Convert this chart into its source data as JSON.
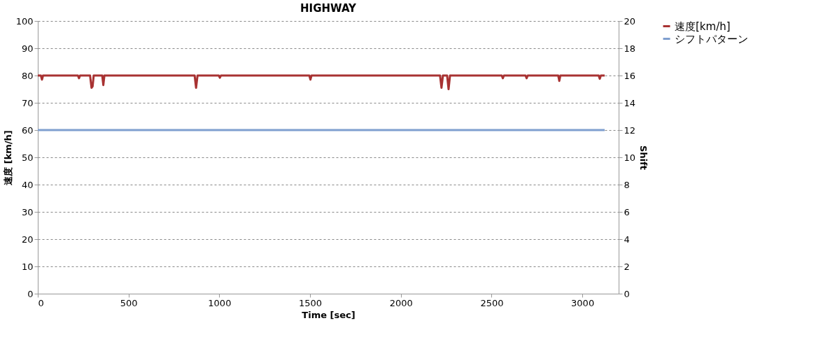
{
  "chart_data": {
    "type": "line",
    "title": "HIGHWAY",
    "xlabel": "Time [sec]",
    "ylabel": "速度 [km/h]",
    "y2label": "Shift",
    "xlim": [
      0,
      3200
    ],
    "xticks": [
      0,
      500,
      1000,
      1500,
      2000,
      2500,
      3000
    ],
    "ylim": [
      0,
      100
    ],
    "yticks": [
      0,
      10,
      20,
      30,
      40,
      50,
      60,
      70,
      80,
      90,
      100
    ],
    "y2lim": [
      0,
      20
    ],
    "y2ticks": [
      0,
      2,
      4,
      6,
      8,
      10,
      12,
      14,
      16,
      18,
      20
    ],
    "grid": "y",
    "legend": "right",
    "line_style": "solid",
    "marker": "none",
    "series": [
      {
        "name": "速度[km/h]",
        "color": "#a83232",
        "x": [
          0,
          17,
          23,
          29,
          221,
          227,
          233,
          288,
          296,
          302,
          308,
          355,
          361,
          367,
          864,
          872,
          880,
          997,
          1003,
          1009,
          1496,
          1502,
          1508,
          2216,
          2224,
          2232,
          2255,
          2263,
          2271,
          2556,
          2562,
          2568,
          2687,
          2693,
          2699,
          2867,
          2873,
          2879,
          3090,
          3096,
          3102,
          3123
        ],
        "values": [
          80,
          80,
          78.5,
          80,
          80,
          79,
          80,
          80,
          75.5,
          76,
          80,
          80,
          76.5,
          80,
          80,
          75.5,
          80,
          80,
          79.2,
          80,
          80,
          78.5,
          80,
          80,
          75.5,
          80,
          80,
          75,
          80,
          80,
          79,
          80,
          80,
          79,
          80,
          80,
          78,
          80,
          80,
          78.8,
          80,
          80
        ]
      },
      {
        "name": "シフトパターン",
        "color": "#7f9fcf",
        "axis": "y2",
        "x": [
          0,
          3123
        ],
        "values": [
          12,
          12
        ]
      }
    ]
  }
}
